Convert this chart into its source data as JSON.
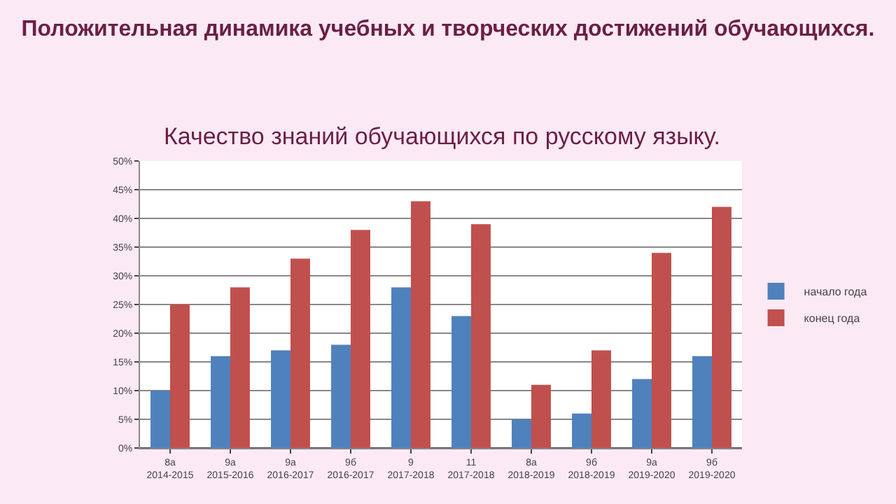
{
  "chart_data": {
    "type": "bar",
    "title": "Положительная динамика учебных и творческих достижений обучающихся.",
    "subtitle": "Качество знаний обучающихся по русскому языку.",
    "categories": [
      "8а 2014-2015",
      "9а 2015-2016",
      "9а 2016-2017",
      "9б 2016-2017",
      "9 2017-2018",
      "11 2017-2018",
      "8а 2018-2019",
      "9б 2018-2019",
      "9а 2019-2020",
      "9б 2019-2020"
    ],
    "series": [
      {
        "name": "начало года",
        "color": "#4f81bd",
        "values": [
          10,
          16,
          17,
          18,
          28,
          23,
          5,
          6,
          12,
          16
        ]
      },
      {
        "name": "конец года",
        "color": "#c0504d",
        "values": [
          25,
          28,
          33,
          38,
          43,
          39,
          11,
          17,
          34,
          42
        ]
      }
    ],
    "ylim": [
      0,
      50
    ],
    "yticks": [
      {
        "value": 0,
        "label": "0%"
      },
      {
        "value": 5,
        "label": "5%"
      },
      {
        "value": 10,
        "label": "10%"
      },
      {
        "value": 15,
        "label": "15%"
      },
      {
        "value": 20,
        "label": "20%"
      },
      {
        "value": 25,
        "label": "25%"
      },
      {
        "value": 30,
        "label": "30%"
      },
      {
        "value": 35,
        "label": "35%"
      },
      {
        "value": 40,
        "label": "40%"
      },
      {
        "value": 45,
        "label": "45%"
      },
      {
        "value": 50,
        "label": "50%"
      }
    ],
    "grid": "y",
    "legend": "right"
  }
}
